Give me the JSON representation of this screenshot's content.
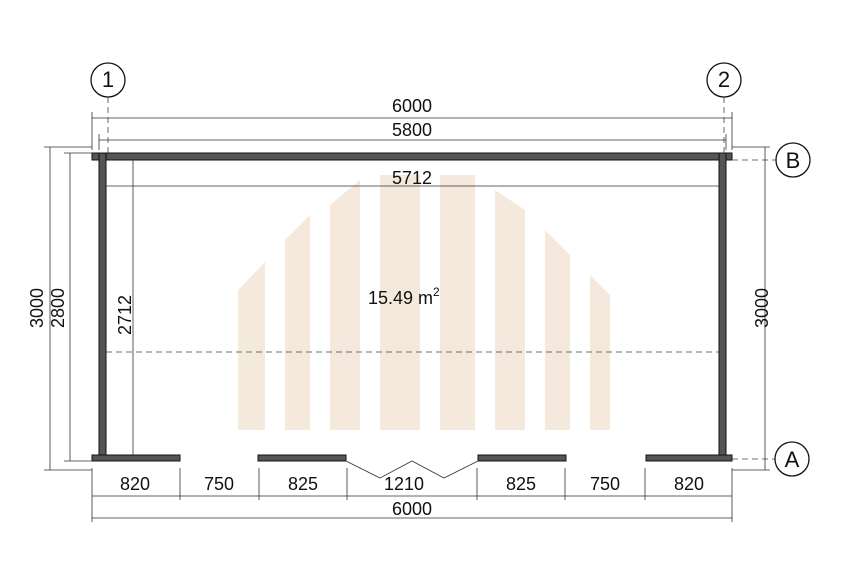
{
  "grid_labels": {
    "col_1": "1",
    "col_2": "2",
    "row_a": "A",
    "row_b": "B"
  },
  "dimensions": {
    "overall_top": "6000",
    "outer_top": "5800",
    "inner_top": "5712",
    "left_overall": "3000",
    "left_outer": "2800",
    "inner_left": "2712",
    "right_overall": "3000",
    "bottom_segments": [
      "820",
      "750",
      "825",
      "1210",
      "825",
      "750",
      "820"
    ],
    "overall_bottom": "6000"
  },
  "area": {
    "text": "15.49 m",
    "sup": "2"
  }
}
